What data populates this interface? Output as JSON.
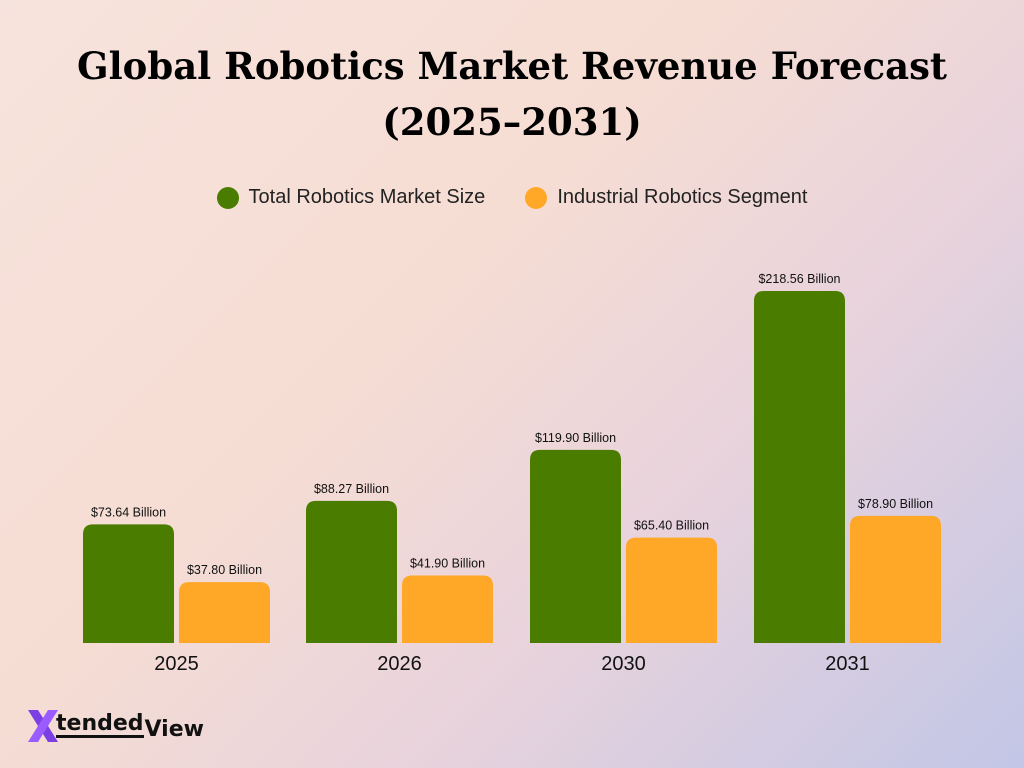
{
  "chart_data": {
    "type": "bar",
    "title_line1": "Global Robotics Market Revenue Forecast",
    "title_line2": "(2025–2031)",
    "categories": [
      "2025",
      "2026",
      "2030",
      "2031"
    ],
    "series": [
      {
        "name": "Total Robotics Market Size",
        "color": "#4a7c00",
        "values": [
          73.64,
          88.27,
          119.9,
          218.56
        ],
        "labels": [
          "$73.64 Billion",
          "$88.27 Billion",
          "$119.90 Billion",
          "$218.56 Billion"
        ]
      },
      {
        "name": "Industrial Robotics Segment",
        "color": "#ffa726",
        "values": [
          37.8,
          41.9,
          65.4,
          78.9
        ],
        "labels": [
          "$37.80 Billion",
          "$41.90 Billion",
          "$65.40 Billion",
          "$78.90 Billion"
        ]
      }
    ],
    "grid": false,
    "legend_position": "top-center"
  },
  "logo": {
    "part1": "tended",
    "part2": "View",
    "x_color": "#7b3fe4"
  }
}
